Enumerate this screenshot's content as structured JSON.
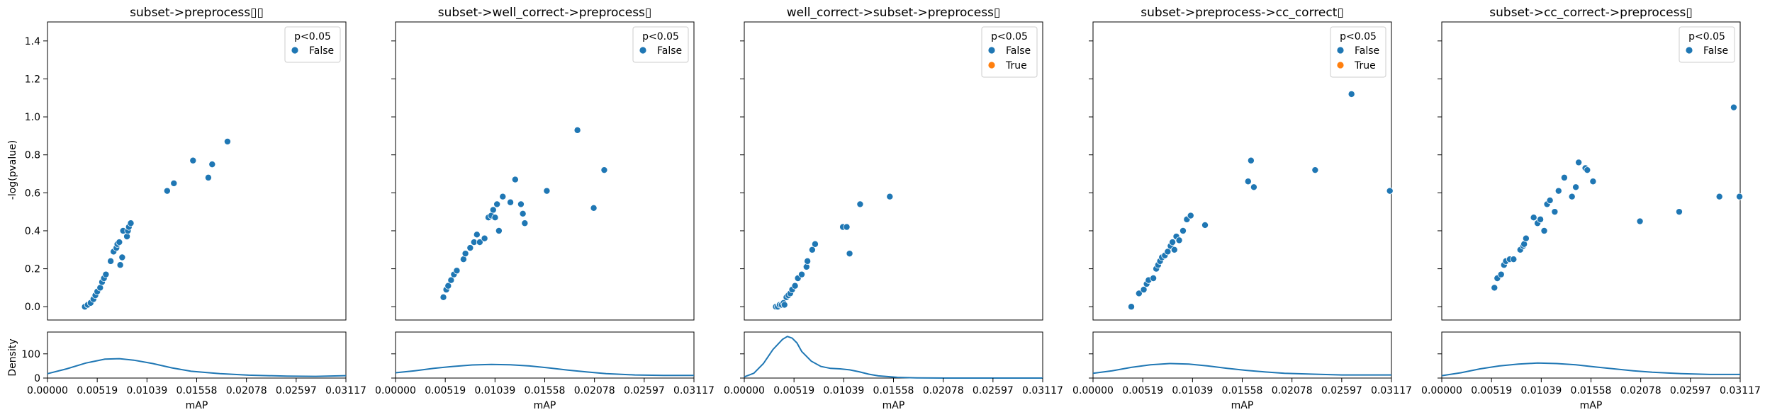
{
  "figure": {
    "ylabel_top": "-log(pvalue)",
    "ylabel_bottom": "Density",
    "xlabel": "mAP",
    "legend_title": "p<0.05",
    "legend_false": "False",
    "legend_true": "True",
    "color_false": "#1f77b4",
    "color_true": "#ff7f0e"
  },
  "chart_data": [
    {
      "type": "scatter",
      "title": "subset->preprocess▯▯",
      "xlabel": "mAP",
      "ylabel": "-log(pvalue)",
      "xlim": [
        0,
        0.03117
      ],
      "ylim": [
        -0.07,
        1.5
      ],
      "xticks": [
        "0.00000",
        "0.00519",
        "0.01039",
        "0.01558",
        "0.02078",
        "0.02597",
        "0.03117"
      ],
      "yticks": [
        "0.0",
        "0.2",
        "0.4",
        "0.6",
        "0.8",
        "1.0",
        "1.2",
        "1.4"
      ],
      "legend": [
        "False"
      ],
      "points": [
        [
          0.0039,
          0.0
        ],
        [
          0.0042,
          0.01
        ],
        [
          0.0045,
          0.02
        ],
        [
          0.0048,
          0.04
        ],
        [
          0.005,
          0.06
        ],
        [
          0.0052,
          0.08
        ],
        [
          0.0055,
          0.1
        ],
        [
          0.0057,
          0.13
        ],
        [
          0.0059,
          0.15
        ],
        [
          0.0061,
          0.17
        ],
        [
          0.0066,
          0.24
        ],
        [
          0.0069,
          0.29
        ],
        [
          0.0072,
          0.31
        ],
        [
          0.0073,
          0.33
        ],
        [
          0.0075,
          0.34
        ],
        [
          0.0076,
          0.22
        ],
        [
          0.0078,
          0.26
        ],
        [
          0.0079,
          0.4
        ],
        [
          0.0083,
          0.37
        ],
        [
          0.0084,
          0.4
        ],
        [
          0.0085,
          0.42
        ],
        [
          0.0087,
          0.44
        ],
        [
          0.0125,
          0.61
        ],
        [
          0.0132,
          0.65
        ],
        [
          0.0152,
          0.77
        ],
        [
          0.0168,
          0.68
        ],
        [
          0.0172,
          0.75
        ],
        [
          0.0188,
          0.87
        ]
      ],
      "density": {
        "ylim": [
          0,
          190
        ],
        "yticks": [
          "0",
          "100"
        ],
        "curve": [
          [
            0,
            18
          ],
          [
            0.002,
            38
          ],
          [
            0.004,
            62
          ],
          [
            0.006,
            78
          ],
          [
            0.0075,
            80
          ],
          [
            0.009,
            74
          ],
          [
            0.011,
            60
          ],
          [
            0.013,
            42
          ],
          [
            0.015,
            28
          ],
          [
            0.018,
            18
          ],
          [
            0.021,
            12
          ],
          [
            0.025,
            8
          ],
          [
            0.028,
            7
          ],
          [
            0.03117,
            10
          ]
        ]
      }
    },
    {
      "type": "scatter",
      "title": "subset->well_correct->preprocess▯",
      "xlabel": "mAP",
      "ylabel": "",
      "xlim": [
        0,
        0.03117
      ],
      "ylim": [
        -0.07,
        1.5
      ],
      "xticks": [
        "0.00000",
        "0.00519",
        "0.01039",
        "0.01558",
        "0.02078",
        "0.02597",
        "0.03117"
      ],
      "yticks": [],
      "legend": [
        "False"
      ],
      "points": [
        [
          0.005,
          0.05
        ],
        [
          0.0053,
          0.09
        ],
        [
          0.0055,
          0.11
        ],
        [
          0.0058,
          0.14
        ],
        [
          0.0061,
          0.17
        ],
        [
          0.0064,
          0.19
        ],
        [
          0.0071,
          0.25
        ],
        [
          0.0073,
          0.28
        ],
        [
          0.0078,
          0.31
        ],
        [
          0.0082,
          0.34
        ],
        [
          0.0085,
          0.38
        ],
        [
          0.0088,
          0.34
        ],
        [
          0.0093,
          0.36
        ],
        [
          0.0097,
          0.47
        ],
        [
          0.01,
          0.48
        ],
        [
          0.0102,
          0.51
        ],
        [
          0.0104,
          0.47
        ],
        [
          0.0106,
          0.54
        ],
        [
          0.0108,
          0.4
        ],
        [
          0.0112,
          0.58
        ],
        [
          0.012,
          0.55
        ],
        [
          0.0125,
          0.67
        ],
        [
          0.0131,
          0.54
        ],
        [
          0.0135,
          0.44
        ],
        [
          0.0133,
          0.49
        ],
        [
          0.0158,
          0.61
        ],
        [
          0.019,
          0.93
        ],
        [
          0.0207,
          0.52
        ],
        [
          0.0218,
          0.72
        ]
      ],
      "density": {
        "ylim": [
          0,
          190
        ],
        "yticks": [],
        "curve": [
          [
            0,
            22
          ],
          [
            0.002,
            30
          ],
          [
            0.004,
            40
          ],
          [
            0.006,
            48
          ],
          [
            0.008,
            54
          ],
          [
            0.01,
            56
          ],
          [
            0.012,
            55
          ],
          [
            0.014,
            50
          ],
          [
            0.016,
            42
          ],
          [
            0.018,
            33
          ],
          [
            0.02,
            25
          ],
          [
            0.022,
            18
          ],
          [
            0.025,
            13
          ],
          [
            0.028,
            11
          ],
          [
            0.03117,
            11
          ]
        ]
      }
    },
    {
      "type": "scatter",
      "title": "well_correct->subset->preprocess▯",
      "xlabel": "mAP",
      "ylabel": "",
      "xlim": [
        0,
        0.03117
      ],
      "ylim": [
        -0.07,
        1.5
      ],
      "xticks": [
        "0.00000",
        "0.00519",
        "0.01039",
        "0.01558",
        "0.02078",
        "0.02597",
        "0.03117"
      ],
      "yticks": [],
      "legend": [
        "False",
        "True"
      ],
      "points": [
        [
          0.0033,
          0.0
        ],
        [
          0.0035,
          0.0
        ],
        [
          0.0037,
          0.01
        ],
        [
          0.0039,
          0.01
        ],
        [
          0.0041,
          0.02
        ],
        [
          0.0042,
          0.01
        ],
        [
          0.0044,
          0.05
        ],
        [
          0.0046,
          0.06
        ],
        [
          0.0048,
          0.07
        ],
        [
          0.005,
          0.09
        ],
        [
          0.0053,
          0.11
        ],
        [
          0.0056,
          0.15
        ],
        [
          0.006,
          0.17
        ],
        [
          0.0065,
          0.21
        ],
        [
          0.0066,
          0.24
        ],
        [
          0.0071,
          0.3
        ],
        [
          0.0074,
          0.33
        ],
        [
          0.0103,
          0.42
        ],
        [
          0.0107,
          0.42
        ],
        [
          0.011,
          0.28
        ],
        [
          0.0121,
          0.54
        ],
        [
          0.0152,
          0.58
        ]
      ],
      "density": {
        "ylim": [
          0,
          190
        ],
        "yticks": [],
        "curve": [
          [
            0,
            5
          ],
          [
            0.001,
            20
          ],
          [
            0.002,
            60
          ],
          [
            0.003,
            118
          ],
          [
            0.004,
            160
          ],
          [
            0.0045,
            172
          ],
          [
            0.005,
            165
          ],
          [
            0.0055,
            145
          ],
          [
            0.006,
            110
          ],
          [
            0.007,
            70
          ],
          [
            0.008,
            48
          ],
          [
            0.009,
            40
          ],
          [
            0.01,
            38
          ],
          [
            0.011,
            34
          ],
          [
            0.012,
            26
          ],
          [
            0.013,
            16
          ],
          [
            0.014,
            9
          ],
          [
            0.016,
            3
          ],
          [
            0.018,
            1
          ],
          [
            0.021,
            0
          ],
          [
            0.03117,
            0
          ]
        ]
      }
    },
    {
      "type": "scatter",
      "title": "subset->preprocess->cc_correct▯",
      "xlabel": "mAP",
      "ylabel": "",
      "xlim": [
        0,
        0.03117
      ],
      "ylim": [
        -0.07,
        1.5
      ],
      "xticks": [
        "0.00000",
        "0.00519",
        "0.01039",
        "0.01558",
        "0.02078",
        "0.02597",
        "0.03117"
      ],
      "yticks": [],
      "legend": [
        "False",
        "True"
      ],
      "points": [
        [
          0.004,
          0.0
        ],
        [
          0.0048,
          0.07
        ],
        [
          0.0053,
          0.09
        ],
        [
          0.0056,
          0.12
        ],
        [
          0.0058,
          0.14
        ],
        [
          0.0063,
          0.15
        ],
        [
          0.0066,
          0.2
        ],
        [
          0.0068,
          0.22
        ],
        [
          0.007,
          0.24
        ],
        [
          0.0072,
          0.26
        ],
        [
          0.0075,
          0.27
        ],
        [
          0.0078,
          0.29
        ],
        [
          0.0081,
          0.32
        ],
        [
          0.0083,
          0.34
        ],
        [
          0.0085,
          0.3
        ],
        [
          0.0087,
          0.37
        ],
        [
          0.009,
          0.35
        ],
        [
          0.0094,
          0.4
        ],
        [
          0.0098,
          0.46
        ],
        [
          0.0102,
          0.48
        ],
        [
          0.0117,
          0.43
        ],
        [
          0.0162,
          0.66
        ],
        [
          0.0165,
          0.77
        ],
        [
          0.0168,
          0.63
        ],
        [
          0.0232,
          0.72
        ],
        [
          0.027,
          1.12
        ],
        [
          0.031,
          0.61
        ]
      ],
      "density": {
        "ylim": [
          0,
          190
        ],
        "yticks": [],
        "curve": [
          [
            0,
            20
          ],
          [
            0.002,
            30
          ],
          [
            0.004,
            44
          ],
          [
            0.006,
            55
          ],
          [
            0.008,
            60
          ],
          [
            0.01,
            58
          ],
          [
            0.012,
            50
          ],
          [
            0.014,
            40
          ],
          [
            0.016,
            32
          ],
          [
            0.018,
            25
          ],
          [
            0.02,
            20
          ],
          [
            0.023,
            16
          ],
          [
            0.026,
            13
          ],
          [
            0.03117,
            13
          ]
        ]
      }
    },
    {
      "type": "scatter",
      "title": "subset->cc_correct->preprocess▯",
      "xlabel": "mAP",
      "ylabel": "",
      "xlim": [
        0,
        0.03117
      ],
      "ylim": [
        -0.07,
        1.5
      ],
      "xticks": [
        "0.00000",
        "0.00519",
        "0.01039",
        "0.01558",
        "0.02078",
        "0.02597",
        "0.03117"
      ],
      "yticks": [],
      "legend": [
        "False"
      ],
      "points": [
        [
          0.0055,
          0.1
        ],
        [
          0.0058,
          0.15
        ],
        [
          0.0062,
          0.17
        ],
        [
          0.0065,
          0.22
        ],
        [
          0.0067,
          0.24
        ],
        [
          0.0071,
          0.25
        ],
        [
          0.0075,
          0.25
        ],
        [
          0.0082,
          0.3
        ],
        [
          0.0085,
          0.32
        ],
        [
          0.0086,
          0.33
        ],
        [
          0.0088,
          0.36
        ],
        [
          0.0096,
          0.47
        ],
        [
          0.01,
          0.44
        ],
        [
          0.0103,
          0.46
        ],
        [
          0.0107,
          0.4
        ],
        [
          0.011,
          0.54
        ],
        [
          0.0113,
          0.56
        ],
        [
          0.0118,
          0.5
        ],
        [
          0.0122,
          0.61
        ],
        [
          0.0128,
          0.68
        ],
        [
          0.0136,
          0.58
        ],
        [
          0.014,
          0.63
        ],
        [
          0.0143,
          0.76
        ],
        [
          0.015,
          0.73
        ],
        [
          0.0152,
          0.72
        ],
        [
          0.0158,
          0.66
        ],
        [
          0.0207,
          0.45
        ],
        [
          0.0248,
          0.5
        ],
        [
          0.029,
          0.58
        ],
        [
          0.0305,
          1.05
        ],
        [
          0.0311,
          0.58
        ]
      ],
      "density": {
        "ylim": [
          0,
          190
        ],
        "yticks": [],
        "curve": [
          [
            0,
            10
          ],
          [
            0.002,
            22
          ],
          [
            0.004,
            38
          ],
          [
            0.006,
            50
          ],
          [
            0.008,
            58
          ],
          [
            0.01,
            62
          ],
          [
            0.012,
            60
          ],
          [
            0.014,
            55
          ],
          [
            0.016,
            46
          ],
          [
            0.018,
            38
          ],
          [
            0.02,
            30
          ],
          [
            0.022,
            24
          ],
          [
            0.025,
            18
          ],
          [
            0.028,
            15
          ],
          [
            0.03117,
            15
          ]
        ]
      }
    }
  ]
}
